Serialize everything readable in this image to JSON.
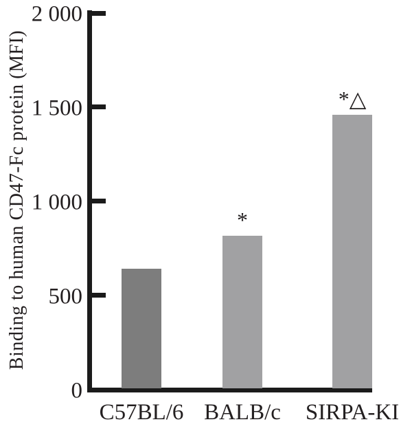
{
  "chart_data": {
    "type": "bar",
    "title": "",
    "xlabel": "",
    "ylabel": "Binding to human CD47-Fc protein (MFI)",
    "categories": [
      "C57BL/6",
      "BALB/c",
      "SIRPA-KI"
    ],
    "values": [
      640,
      815,
      1460
    ],
    "annotations": [
      "",
      "*",
      "*△"
    ],
    "ylim": [
      0,
      2000
    ],
    "yticks": [
      {
        "value": 0,
        "label": "0"
      },
      {
        "value": 500,
        "label": "500"
      },
      {
        "value": 1000,
        "label": "1 000"
      },
      {
        "value": 1500,
        "label": "1 500"
      },
      {
        "value": 2000,
        "label": "2 000"
      }
    ],
    "grid": false,
    "legend": null,
    "colors": {
      "bars": [
        "#7d7d7d",
        "#a1a1a3",
        "#a1a1a3"
      ],
      "axis": "#1b1b1b",
      "text": "#231f20",
      "background": "#ffffff"
    }
  }
}
